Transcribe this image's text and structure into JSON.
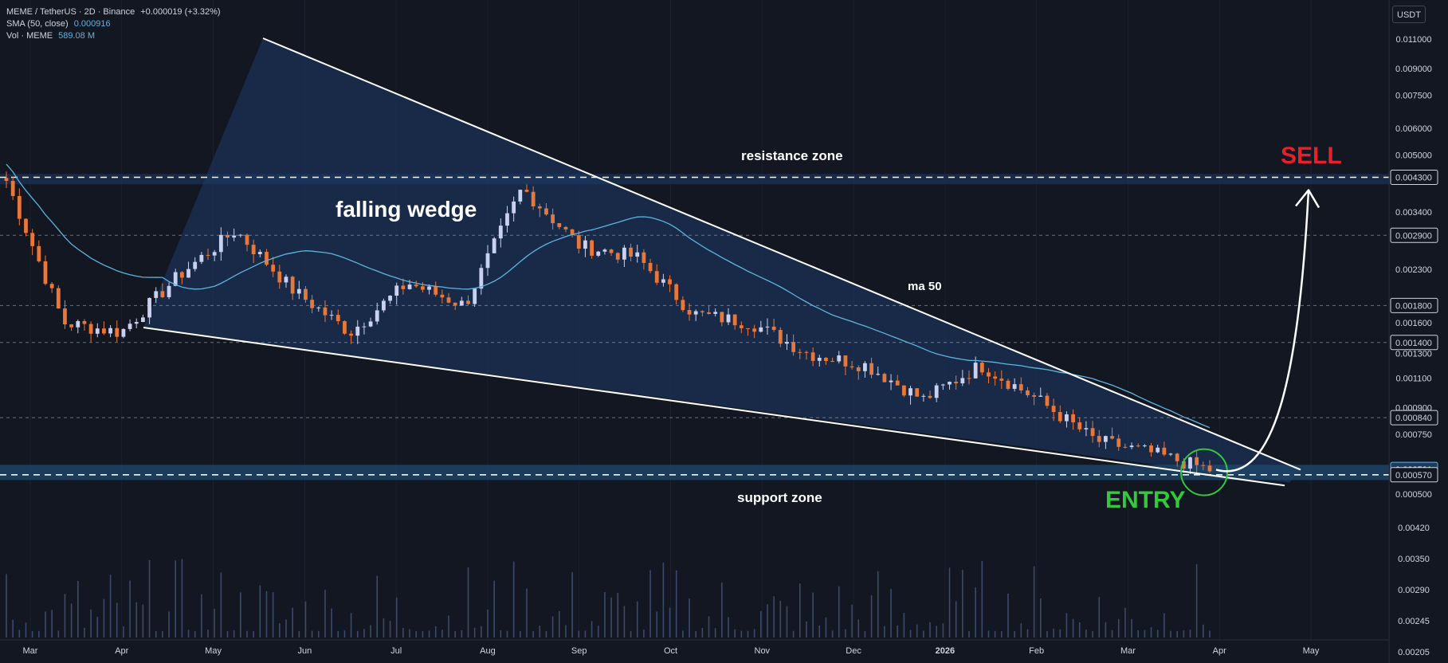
{
  "header": {
    "symbol": "MEME / TetherUS · 2D · Binance",
    "change": "+0.000019 (+3.32%)",
    "sma_label": "SMA (50, close)",
    "sma_value": "0.000916",
    "vol_label": "Vol · MEME",
    "vol_value": "589.08 M"
  },
  "currency_button": "USDT",
  "annotations": {
    "wedge": "falling wedge",
    "resistance": "resistance zone",
    "support": "support zone",
    "ma": "ma 50",
    "sell": "SELL",
    "entry": "ENTRY"
  },
  "colors": {
    "background": "#131722",
    "up": "#c9d0f0",
    "down": "#e8773a",
    "sma": "#5fb4e0",
    "wedge_fill": "#1e3a66",
    "sell": "#e8202a",
    "entry": "#34c83b"
  },
  "chart_data": {
    "type": "candlestick",
    "scale": "log",
    "x_tick_labels": [
      "Mar",
      "Apr",
      "May",
      "Jun",
      "Jul",
      "Aug",
      "Sep",
      "Oct",
      "Nov",
      "Dec",
      "2026",
      "Feb",
      "Mar",
      "Apr",
      "May"
    ],
    "y_tick_labels": [
      "0.011000",
      "0.009000",
      "0.007500",
      "0.006000",
      "0.005000",
      "0.004300",
      "0.003400",
      "0.002900",
      "0.002300",
      "0.001800",
      "0.001600",
      "0.001400",
      "0.001300",
      "0.001100",
      "0.000900",
      "0.000840",
      "0.000750",
      "0.000591",
      "0.000570",
      "0.000500"
    ],
    "highlighted_price_labels": [
      "0.004300",
      "0.002900",
      "0.001800",
      "0.001400",
      "0.000840",
      "0.000591",
      "0.000570"
    ],
    "current_price_label": "0.000591",
    "volume_tick_labels": [
      "0.00420",
      "0.00350",
      "0.00290",
      "0.00245",
      "0.00205"
    ],
    "resistance_zone": [
      0.0041,
      0.0044
    ],
    "support_zone": [
      0.00055,
      0.00061
    ],
    "horizontal_levels": [
      0.0043,
      0.0029,
      0.0018,
      0.0014,
      0.00084,
      0.00057
    ],
    "price_anchors": [
      {
        "x": "early Mar 2025",
        "price": 0.0042
      },
      {
        "x": "early Apr 2025",
        "price": 0.0016
      },
      {
        "x": "mid Apr 2025",
        "price": 0.0015
      },
      {
        "x": "late Apr 2025",
        "price": 0.0022
      },
      {
        "x": "mid May 2025",
        "price": 0.003
      },
      {
        "x": "early Jun 2025",
        "price": 0.002
      },
      {
        "x": "mid Jul 2025",
        "price": 0.0015
      },
      {
        "x": "early Aug 2025",
        "price": 0.0021
      },
      {
        "x": "mid Aug 2025",
        "price": 0.0018
      },
      {
        "x": "late Aug 2025",
        "price": 0.004
      },
      {
        "x": "early Sep 2025",
        "price": 0.0027
      },
      {
        "x": "early Oct 2025",
        "price": 0.0025
      },
      {
        "x": "mid Oct 2025",
        "price": 0.0017
      },
      {
        "x": "early Nov 2025",
        "price": 0.0016
      },
      {
        "x": "mid Nov 2025",
        "price": 0.0013
      },
      {
        "x": "early Dec 2025",
        "price": 0.0012
      },
      {
        "x": "mid Dec 2025",
        "price": 0.00095
      },
      {
        "x": "early Jan 2026",
        "price": 0.0012
      },
      {
        "x": "late Jan 2026",
        "price": 0.00095
      },
      {
        "x": "early Feb 2026",
        "price": 0.00072
      },
      {
        "x": "late Feb 2026",
        "price": 0.00066
      },
      {
        "x": "early Mar 2026",
        "price": 0.00059
      }
    ],
    "sma_50": {
      "name": "SMA (50, close)",
      "last": 0.000916
    },
    "projection": {
      "from": 0.00059,
      "to": 0.0043
    }
  }
}
